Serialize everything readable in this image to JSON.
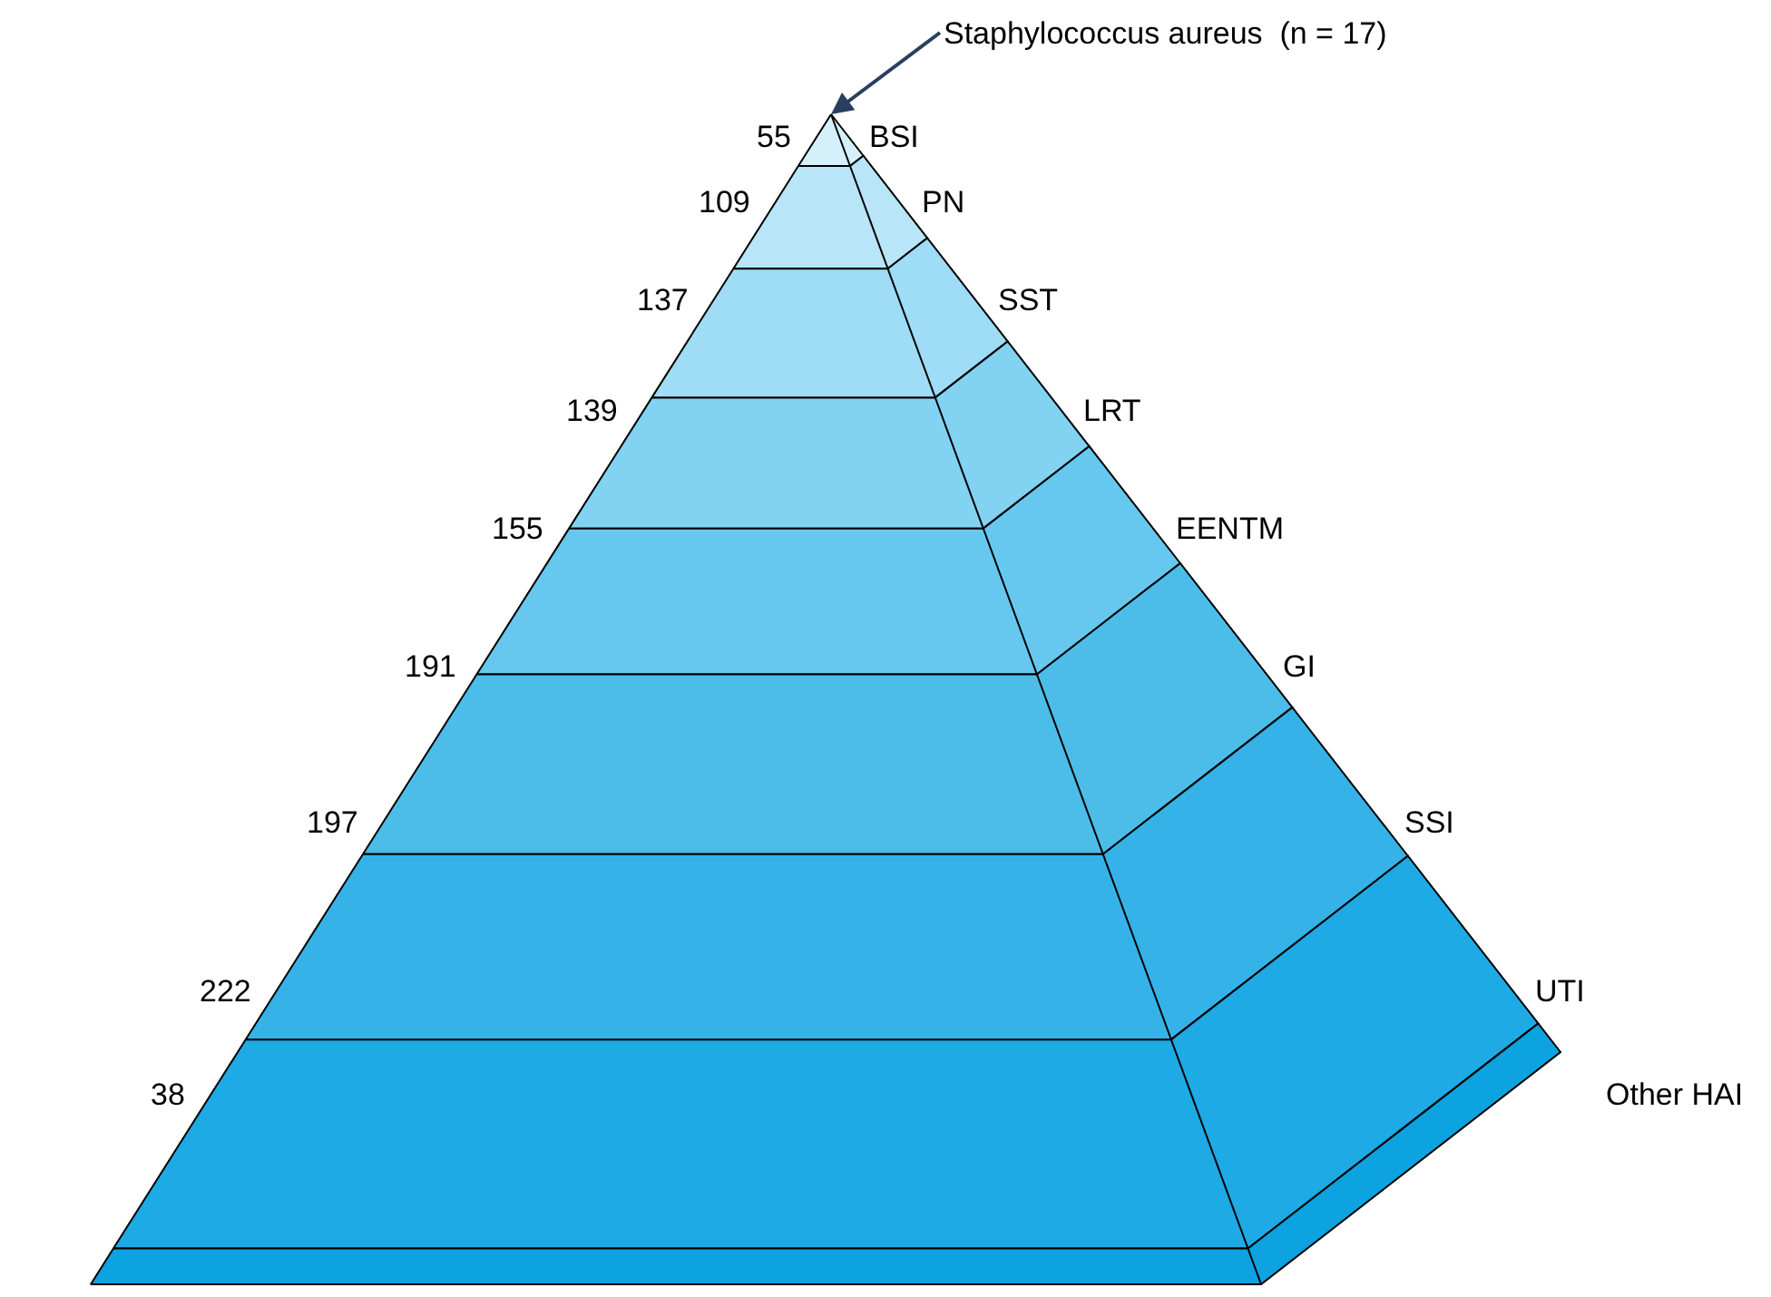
{
  "chart_data": {
    "type": "other",
    "categories": [
      "BSI",
      "PN",
      "SST",
      "LRT",
      "EENTM",
      "GI",
      "SSI",
      "UTI",
      "Other HAI"
    ],
    "values": [
      55,
      109,
      137,
      139,
      155,
      191,
      197,
      222,
      38
    ],
    "colors": [
      "#d4f0fb",
      "#b8e5f8",
      "#9fdcf5",
      "#82d2f2",
      "#67c8ef",
      "#4cbde9",
      "#35b3e8",
      "#1eaae4",
      "#0da2e0"
    ],
    "data_labels": true,
    "annotations": [
      "Staphylococcus aureus  (n = 17)"
    ]
  }
}
